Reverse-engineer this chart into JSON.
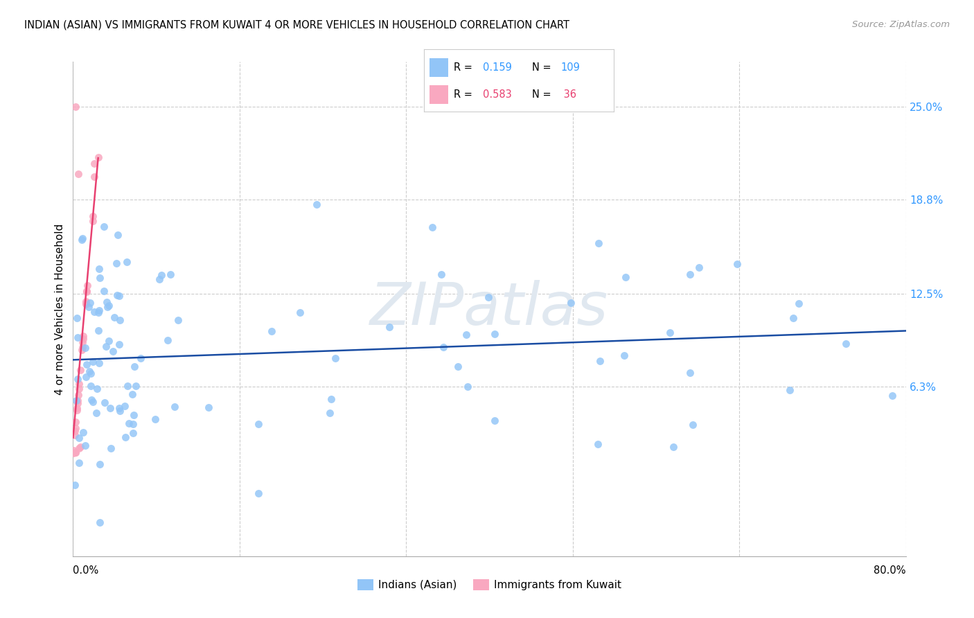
{
  "title": "INDIAN (ASIAN) VS IMMIGRANTS FROM KUWAIT 4 OR MORE VEHICLES IN HOUSEHOLD CORRELATION CHART",
  "source": "Source: ZipAtlas.com",
  "ylabel": "4 or more Vehicles in Household",
  "ytick_values": [
    6.3,
    12.5,
    18.8,
    25.0
  ],
  "xmin": 0.0,
  "xmax": 80.0,
  "ymin": -5.0,
  "ymax": 28.0,
  "series_blue_label": "Indians (Asian)",
  "series_pink_label": "Immigrants from Kuwait",
  "blue_color": "#92c5f7",
  "pink_color": "#f9a8c0",
  "blue_line_color": "#1a4da3",
  "pink_line_color": "#e84070",
  "blue_R": 0.159,
  "blue_N": 109,
  "pink_R": 0.583,
  "pink_N": 36,
  "legend_val_color_blue": "#3399ff",
  "legend_val_color_pink": "#e84070",
  "watermark": "ZIPatlas",
  "watermark_color": "#e0e8f0",
  "grid_color": "#cccccc"
}
